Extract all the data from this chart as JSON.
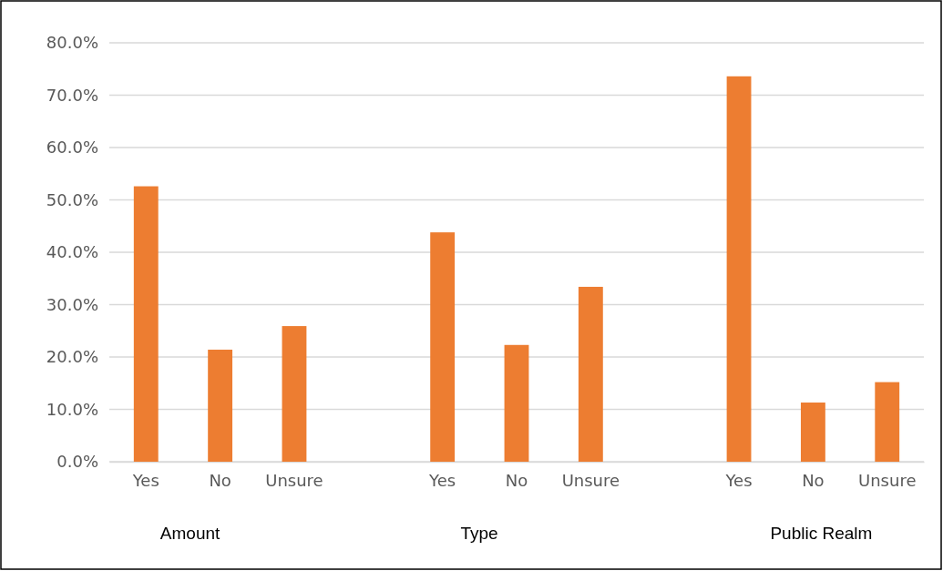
{
  "chart_data": {
    "type": "bar",
    "categories": [
      "Yes",
      "No",
      "Unsure",
      null,
      "Yes",
      "No",
      "Unsure",
      null,
      "Yes",
      "No",
      "Unsure"
    ],
    "values": [
      52.6,
      21.4,
      25.9,
      null,
      43.8,
      22.3,
      33.4,
      null,
      73.6,
      11.3,
      15.2
    ],
    "color": "#ed7d31",
    "ylim": [
      0,
      80
    ],
    "yticks": [
      {
        "value": 0,
        "label": "0.0%"
      },
      {
        "value": 10,
        "label": "10.0%"
      },
      {
        "value": 20,
        "label": "20.0%"
      },
      {
        "value": 30,
        "label": "30.0%"
      },
      {
        "value": 40,
        "label": "40.0%"
      },
      {
        "value": 50,
        "label": "50.0%"
      },
      {
        "value": 60,
        "label": "60.0%"
      },
      {
        "value": 70,
        "label": "70.0%"
      },
      {
        "value": 80,
        "label": "80.0%"
      }
    ],
    "grid": "y",
    "annotations": [
      "Amount",
      "Type",
      "Public Realm"
    ]
  }
}
